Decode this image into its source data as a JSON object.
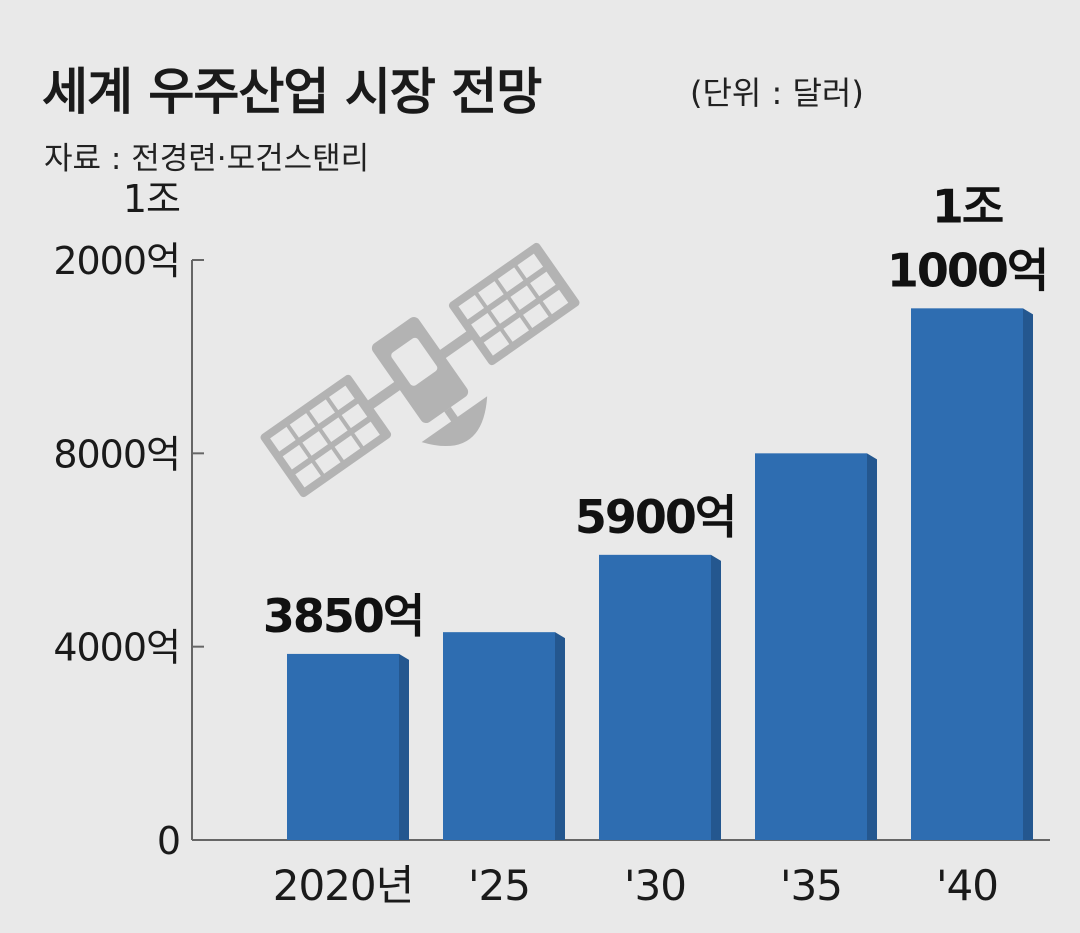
{
  "header": {
    "title": "세계 우주산업 시장 전망",
    "unit": "(단위 : 달러)",
    "source": "자료 : 전경련·모건스탠리"
  },
  "colors": {
    "bar": "#2e6db1",
    "bar_shade": "#24578f",
    "axis": "#666666",
    "background": "#e9e9e9",
    "satellite": "#b3b3b3"
  },
  "decoration": {
    "icon": "satellite-icon"
  },
  "chart_data": {
    "type": "bar",
    "title": "세계 우주산업 시장 전망",
    "ylabel": "",
    "xlabel": "",
    "ylim": [
      0,
      12000
    ],
    "y_unit": "억 달러",
    "grid": false,
    "legend": "none",
    "categories": [
      "2020년",
      "'25",
      "'30",
      "'35",
      "'40"
    ],
    "values": [
      3850,
      4300,
      5900,
      8000,
      11000
    ],
    "data_labels": [
      {
        "index": 0,
        "lines": [
          "3850억"
        ]
      },
      {
        "index": 2,
        "lines": [
          "5900억"
        ]
      },
      {
        "index": 4,
        "lines": [
          "1조",
          "1000억"
        ]
      }
    ],
    "y_ticks": [
      {
        "value": 0,
        "lines": [
          "0"
        ]
      },
      {
        "value": 4000,
        "lines": [
          "4000억"
        ]
      },
      {
        "value": 8000,
        "lines": [
          "8000억"
        ]
      },
      {
        "value": 12000,
        "lines": [
          "1조",
          "2000억"
        ]
      }
    ]
  }
}
